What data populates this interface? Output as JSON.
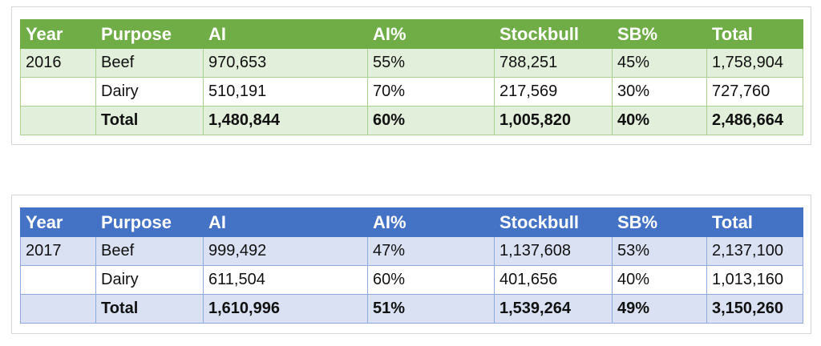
{
  "tables": [
    {
      "header": [
        "Year",
        "Purpose",
        "AI",
        "AI%",
        "Stockbull",
        "SB%",
        "Total"
      ],
      "rows": [
        {
          "year": "2016",
          "purpose": "Beef",
          "ai": "970,653",
          "ai_pct": "55%",
          "stockbull": "788,251",
          "sb_pct": "45%",
          "total": "1,758,904"
        },
        {
          "purpose": "Dairy",
          "ai": "510,191",
          "ai_pct": "70%",
          "stockbull": "217,569",
          "sb_pct": "30%",
          "total": "727,760"
        },
        {
          "purpose": "Total",
          "ai": "1,480,844",
          "ai_pct": "60%",
          "stockbull": "1,005,820",
          "sb_pct": "40%",
          "total": "2,486,664"
        }
      ]
    },
    {
      "header": [
        "Year",
        "Purpose",
        "AI",
        "AI%",
        "Stockbull",
        "SB%",
        "Total"
      ],
      "rows": [
        {
          "year": "2017",
          "purpose": "Beef",
          "ai": "999,492",
          "ai_pct": "47%",
          "stockbull": "1,137,608",
          "sb_pct": "53%",
          "total": "2,137,100"
        },
        {
          "purpose": "Dairy",
          "ai": "611,504",
          "ai_pct": "60%",
          "stockbull": "401,656",
          "sb_pct": "40%",
          "total": "1,013,160"
        },
        {
          "purpose": "Total",
          "ai": "1,610,996",
          "ai_pct": "51%",
          "stockbull": "1,539,264",
          "sb_pct": "49%",
          "total": "3,150,260"
        }
      ]
    }
  ]
}
